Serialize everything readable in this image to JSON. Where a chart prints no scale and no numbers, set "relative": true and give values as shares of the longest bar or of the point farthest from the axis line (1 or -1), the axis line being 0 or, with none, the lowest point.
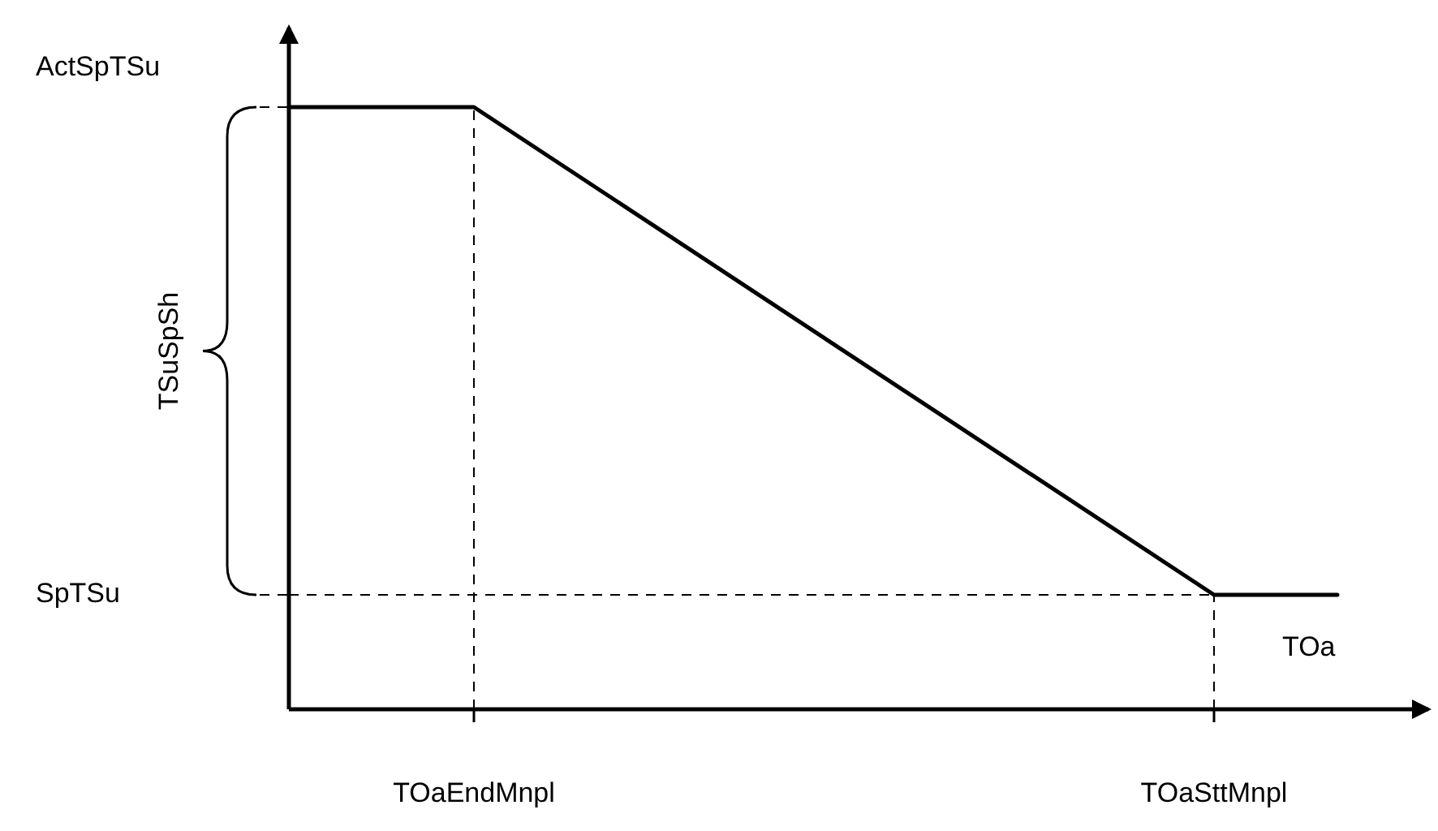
{
  "chart_data": {
    "type": "line",
    "xlabel": "TOa",
    "relative": true,
    "categories": [
      null,
      null,
      null,
      "TOaEndMnpl",
      null,
      null,
      null,
      null,
      null,
      null,
      null,
      null,
      null,
      null,
      null,
      "TOaSttMnpl",
      null,
      null
    ],
    "series": [
      {
        "color": "#000000",
        "values": [
          1,
          null,
          null,
          1,
          null,
          null,
          null,
          null,
          null,
          null,
          null,
          null,
          null,
          null,
          null,
          0.19,
          null,
          0.19
        ]
      }
    ],
    "ref_lines": [
      {
        "axis": "x",
        "value": "TOaEndMnpl",
        "line_style": "dashed",
        "color": "#000000"
      },
      {
        "axis": "x",
        "value": "TOaSttMnpl",
        "line_style": "dashed",
        "color": "#000000"
      },
      {
        "axis": "y",
        "value": 0.19,
        "line_style": "dashed",
        "color": "#000000"
      }
    ],
    "annotations": [
      "ActSpTSu",
      "SpTSu",
      "TSuSpSh"
    ],
    "grid": false,
    "marker": "none",
    "line_style": "solid"
  }
}
